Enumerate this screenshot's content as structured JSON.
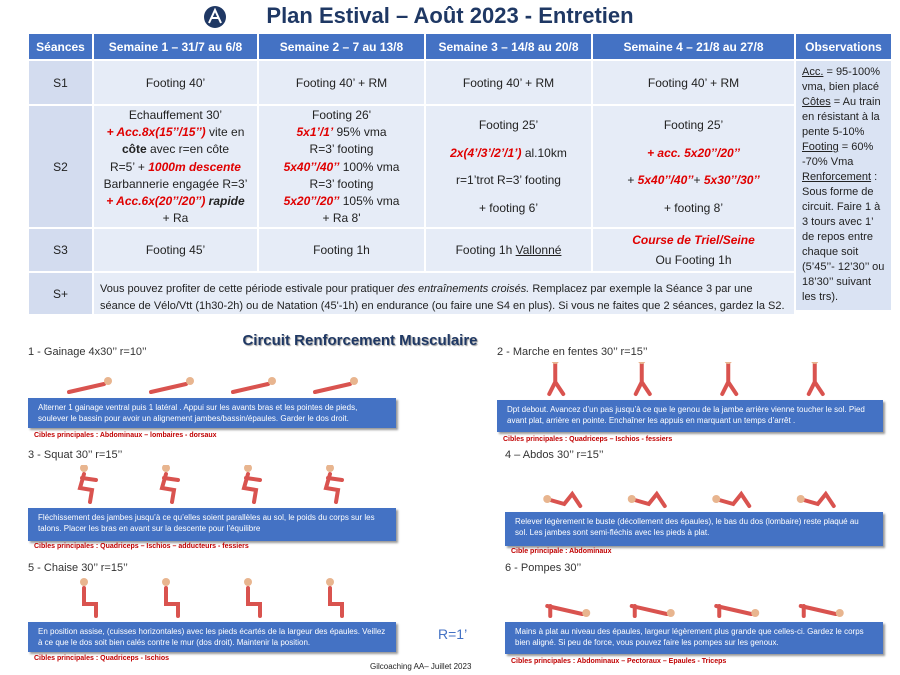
{
  "header": {
    "title": "Plan Estival – Août 2023 - Entretien"
  },
  "table": {
    "columns": [
      "Séances",
      "Semaine 1 – 31/7 au 6/8",
      "Semaine 2 – 7 au 13/8",
      "Semaine 3 – 14/8 au 20/8",
      "Semaine 4 – 21/8 au 27/8",
      "Observations"
    ],
    "rows": [
      {
        "label": "S1",
        "cells": [
          [
            "Footing 40’"
          ],
          [
            "Footing 40’ + RM"
          ],
          [
            "Footing 40’ + RM"
          ],
          [
            "Footing 40’ + RM"
          ]
        ]
      },
      {
        "label": "S2",
        "cells": [
          [
            "Echauffement 30’",
            [
              {
                "text": "+ Acc.8x(15’’/15’’)",
                "style": "red bold italic"
              },
              {
                "text": " vite en"
              }
            ],
            [
              {
                "text": "côte",
                "style": "bold"
              },
              {
                "text": " avec r=en côte"
              }
            ],
            [
              {
                "text": "R=5’ + "
              },
              {
                "text": "1000m descente",
                "style": "red bold italic"
              }
            ],
            "Barbannerie engagée R=3’",
            [
              {
                "text": "+ Acc.6x(20’’/20’’)",
                "style": "red bold italic"
              },
              {
                "text": " rapide",
                "style": "bold italic"
              }
            ],
            "+ Ra"
          ],
          [
            "Footing 26'",
            [
              {
                "text": "5x1’/1’",
                "style": "red bold italic"
              },
              {
                "text": " 95% vma"
              }
            ],
            "R=3’ footing",
            [
              {
                "text": "5x40’’/40’’",
                "style": "red bold italic"
              },
              {
                "text": " 100% vma"
              }
            ],
            "R=3’ footing",
            [
              {
                "text": "5x20’’/20’’",
                "style": "red bold italic"
              },
              {
                "text": " 105% vma"
              }
            ],
            "+ Ra 8'"
          ],
          [
            "Footing 25’",
            [
              {
                "text": "2x(4’/3’/2’/1’)",
                "style": "red bold italic"
              },
              {
                "text": " al.10km"
              }
            ],
            "r=1’trot R=3’ footing",
            "+ footing 6’"
          ],
          [
            "Footing 25’",
            [
              {
                "text": "+ acc. 5x20’’/20’’",
                "style": "red bold italic"
              }
            ],
            [
              {
                "text": "+ "
              },
              {
                "text": "5x40’’/40’’",
                "style": "red bold italic"
              },
              {
                "text": "+ "
              },
              {
                "text": "5x30’’/30’’",
                "style": "red bold italic"
              }
            ],
            "+ footing 8’"
          ]
        ]
      },
      {
        "label": "S3",
        "cells": [
          [
            "Footing 45’"
          ],
          [
            "Footing 1h"
          ],
          [
            [
              {
                "text": "Footing 1h "
              },
              {
                "text": "Vallonné",
                "style": "underline"
              }
            ]
          ],
          [
            [
              {
                "text": "Course de Triel/Seine",
                "style": "red bold italic"
              }
            ],
            "Ou Footing 1h"
          ]
        ]
      },
      {
        "label": "S+",
        "text": [
          {
            "text": "Vous pouvez profiter de cette période estivale pour pratiquer "
          },
          {
            "text": "des entraînements croisés.",
            "style": "italic"
          },
          {
            "text": " Remplacez par exemple la Séance 3 par une séance de Vélo/Vtt (1h30-2h) ou de Natation (45'-1h) en endurance (ou faire une S4 en plus). Si vous ne faites que 2 séances, gardez la S2."
          }
        ]
      }
    ],
    "observations": [
      {
        "text": "Acc.",
        "style": "underline"
      },
      {
        "text": " = 95-100% vma, bien placé "
      },
      {
        "text": "Côtes",
        "style": "underline"
      },
      {
        "text": " = Au train en résistant à la pente 5-10% "
      },
      {
        "text": "Footing",
        "style": "underline"
      },
      {
        "text": " = 60% -70% Vma "
      },
      {
        "text": "Renforcement",
        "style": "underline"
      },
      {
        "text": " : Sous forme de circuit. Faire 1 à 3 tours avec 1’ de repos entre chaque soit (5’45’’- 12’30’’ ou 18’30’’ suivant les trs)."
      }
    ]
  },
  "circuit": {
    "title": "Circuit Renforcement Musculaire",
    "exercises": [
      {
        "heading": "1 - Gainage 4x30’’ r=10’’",
        "description": "Alterner 1 gainage ventral puis 1 latéral . Appui sur les avants bras et les pointes de pieds, soulever le bassin pour avoir un alignement jambes/bassin/épaules. Garder le dos droit.",
        "targets": "Cibles principales : Abdominaux – lombaires - dorsaux"
      },
      {
        "heading": "2 - Marche en fentes 30’’ r=15’’",
        "description": "Dpt debout. Avancez d’un pas jusqu’à ce que le genou de la jambe arrière vienne toucher le sol. Pied avant plat, arrière en pointe. Enchaîner les appuis en marquant un temps d’arrêt .",
        "targets": "Cibles principales : Quadriceps – Ischios - fessiers"
      },
      {
        "heading": "3 - Squat 30’’ r=15’’",
        "description": "Fléchissement des jambes jusqu’à ce qu’elles soient parallèles au sol, le poids du corps sur les talons. Placer les bras en avant sur la descente pour l’équilibre",
        "targets": "Cibles principales : Quadriceps – Ischios – adducteurs - fessiers"
      },
      {
        "heading": "4 – Abdos 30’’ r=15’’",
        "description": "Relever légèrement le buste (décollement des épaules), le bas du dos (lombaire) reste plaqué au sol. Les jambes sont semi-fléchis avec les pieds à plat.",
        "targets": "Cible principale : Abdominaux"
      },
      {
        "heading": "5 - Chaise 30’’ r=15’’",
        "description": "En position assise, (cuisses horizontales) avec les pieds écartés de la largeur des épaules. Veillez à ce que le dos soit bien calés contre le mur (dos droit). Maintenir la position.",
        "targets": "Cibles principales : Quadriceps - Ischios"
      },
      {
        "heading": "6 - Pompes 30’’",
        "description": "Mains à plat au niveau des épaules, largeur légèrement plus grande que celles-ci. Gardez le corps bien aligné. Si peu de force, vous pouvez faire les pompes sur les genoux.",
        "targets": "Cibles principales : Abdominaux – Pectoraux – Epaules - Triceps"
      }
    ],
    "rest": "R=1’"
  },
  "footer": {
    "credit": "Gilcoaching AA– Juillet 2023"
  }
}
